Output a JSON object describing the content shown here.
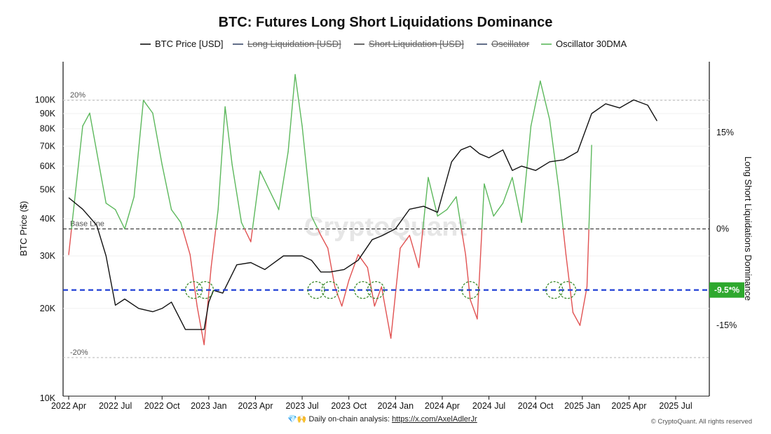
{
  "chart_data": {
    "type": "line",
    "title": "BTC: Futures Long Short Liquidations Dominance",
    "legend": [
      {
        "label": "BTC Price [USD]",
        "color": "#111111",
        "visible": true
      },
      {
        "label": "Long Liquidation [USD]",
        "color": "#3b4a6b",
        "visible": false
      },
      {
        "label": "Short Liquidation [USD]",
        "color": "#444444",
        "visible": false
      },
      {
        "label": "Oscillator",
        "color": "#3b4a6b",
        "visible": false
      },
      {
        "label": "Oscillator 30DMA",
        "color": "#5cb85c",
        "visible": true
      }
    ],
    "x_ticks": [
      "2022 Apr",
      "2022 Jul",
      "2022 Oct",
      "2023 Jan",
      "2023 Apr",
      "2023 Jul",
      "2023 Oct",
      "2024 Jan",
      "2024 Apr",
      "2024 Jul",
      "2024 Oct",
      "2025 Jan",
      "2025 Apr",
      "2025 Jul"
    ],
    "x_range": [
      0,
      13.6
    ],
    "left_axis": {
      "label": "BTC Price ($)",
      "scale": "log",
      "range": [
        10000,
        130000
      ],
      "ticks": [
        {
          "value": 10000,
          "label": "10K"
        },
        {
          "value": 20000,
          "label": "20K"
        },
        {
          "value": 30000,
          "label": "30K"
        },
        {
          "value": 40000,
          "label": "40K"
        },
        {
          "value": 50000,
          "label": "50K"
        },
        {
          "value": 60000,
          "label": "60K"
        },
        {
          "value": 70000,
          "label": "70K"
        },
        {
          "value": 80000,
          "label": "80K"
        },
        {
          "value": 90000,
          "label": "90K"
        },
        {
          "value": 100000,
          "label": "100K"
        }
      ]
    },
    "right_axis": {
      "label": "Long Short Liquidations Dominance",
      "range": [
        -26,
        26
      ],
      "ticks": [
        {
          "value": 15,
          "label": "15%"
        },
        {
          "value": 0,
          "label": "0%"
        },
        {
          "value": -15,
          "label": "-15%"
        }
      ]
    },
    "reference_lines": [
      {
        "value": 20,
        "label": "20%"
      },
      {
        "value": 0,
        "label": "Base Line"
      },
      {
        "value": -20,
        "label": "-20%"
      }
    ],
    "threshold": {
      "value": -9.5,
      "label": "-9.5*%"
    },
    "circles_at": [
      2.68,
      2.92,
      5.3,
      5.6,
      6.3,
      6.58,
      8.6,
      10.4,
      10.68
    ],
    "series": [
      {
        "name": "BTC Price [USD]",
        "axis": "left",
        "x": [
          0.0,
          0.3,
          0.6,
          0.8,
          1.0,
          1.2,
          1.5,
          1.8,
          2.0,
          2.2,
          2.5,
          2.7,
          2.9,
          3.0,
          3.1,
          3.3,
          3.6,
          3.9,
          4.2,
          4.6,
          5.0,
          5.2,
          5.4,
          5.6,
          5.9,
          6.2,
          6.5,
          6.7,
          7.0,
          7.3,
          7.6,
          7.9,
          8.2,
          8.4,
          8.6,
          8.8,
          9.0,
          9.3,
          9.5,
          9.7,
          10.0,
          10.3,
          10.6,
          10.9,
          11.2,
          11.5,
          11.8,
          12.1,
          12.4,
          12.6
        ],
        "values": [
          47000,
          43000,
          38000,
          30000,
          20500,
          21500,
          20000,
          19500,
          20000,
          21000,
          17000,
          17000,
          17000,
          21000,
          23000,
          22500,
          28000,
          28500,
          27000,
          30000,
          30000,
          29000,
          26500,
          26500,
          27000,
          29000,
          34000,
          35000,
          37000,
          43000,
          44000,
          42000,
          62000,
          68000,
          70000,
          66000,
          64000,
          68000,
          58000,
          60000,
          58000,
          62000,
          63000,
          67000,
          90000,
          97000,
          94000,
          100000,
          96000,
          85000
        ]
      },
      {
        "name": "Oscillator 30DMA",
        "axis": "right",
        "x": [
          0.0,
          0.15,
          0.3,
          0.45,
          0.6,
          0.8,
          1.0,
          1.2,
          1.4,
          1.6,
          1.8,
          2.0,
          2.2,
          2.4,
          2.6,
          2.75,
          2.9,
          3.05,
          3.2,
          3.35,
          3.5,
          3.7,
          3.9,
          4.1,
          4.3,
          4.5,
          4.7,
          4.85,
          5.0,
          5.2,
          5.4,
          5.55,
          5.7,
          5.85,
          6.0,
          6.2,
          6.4,
          6.55,
          6.7,
          6.9,
          7.1,
          7.3,
          7.5,
          7.7,
          7.9,
          8.1,
          8.3,
          8.5,
          8.6,
          8.75,
          8.9,
          9.1,
          9.3,
          9.5,
          9.7,
          9.9,
          10.1,
          10.3,
          10.5,
          10.65,
          10.8,
          10.95,
          11.1,
          11.2
        ],
        "values": [
          -4,
          6,
          16,
          18,
          12,
          4,
          3,
          0,
          5,
          20,
          18,
          10,
          3,
          1,
          -4,
          -12,
          -18,
          -6,
          3,
          19,
          10,
          1,
          -2,
          9,
          6,
          3,
          12,
          24,
          16,
          2,
          -1,
          -3,
          -9,
          -12,
          -8,
          -4,
          -6,
          -12,
          -9,
          -17,
          -3,
          -1,
          -6,
          8,
          2,
          3,
          5,
          -4,
          -11,
          -14,
          7,
          2,
          4,
          8,
          1,
          16,
          23,
          17,
          6,
          -4,
          -13,
          -15,
          -9,
          13
        ]
      }
    ],
    "watermark": "CryptoQuant",
    "footer_prefix": "💎🙌 Daily on-chain analysis: ",
    "footer_link": "https://x.com/AxelAdlerJr",
    "copyright": "© CryptoQuant. All rights reserved"
  }
}
